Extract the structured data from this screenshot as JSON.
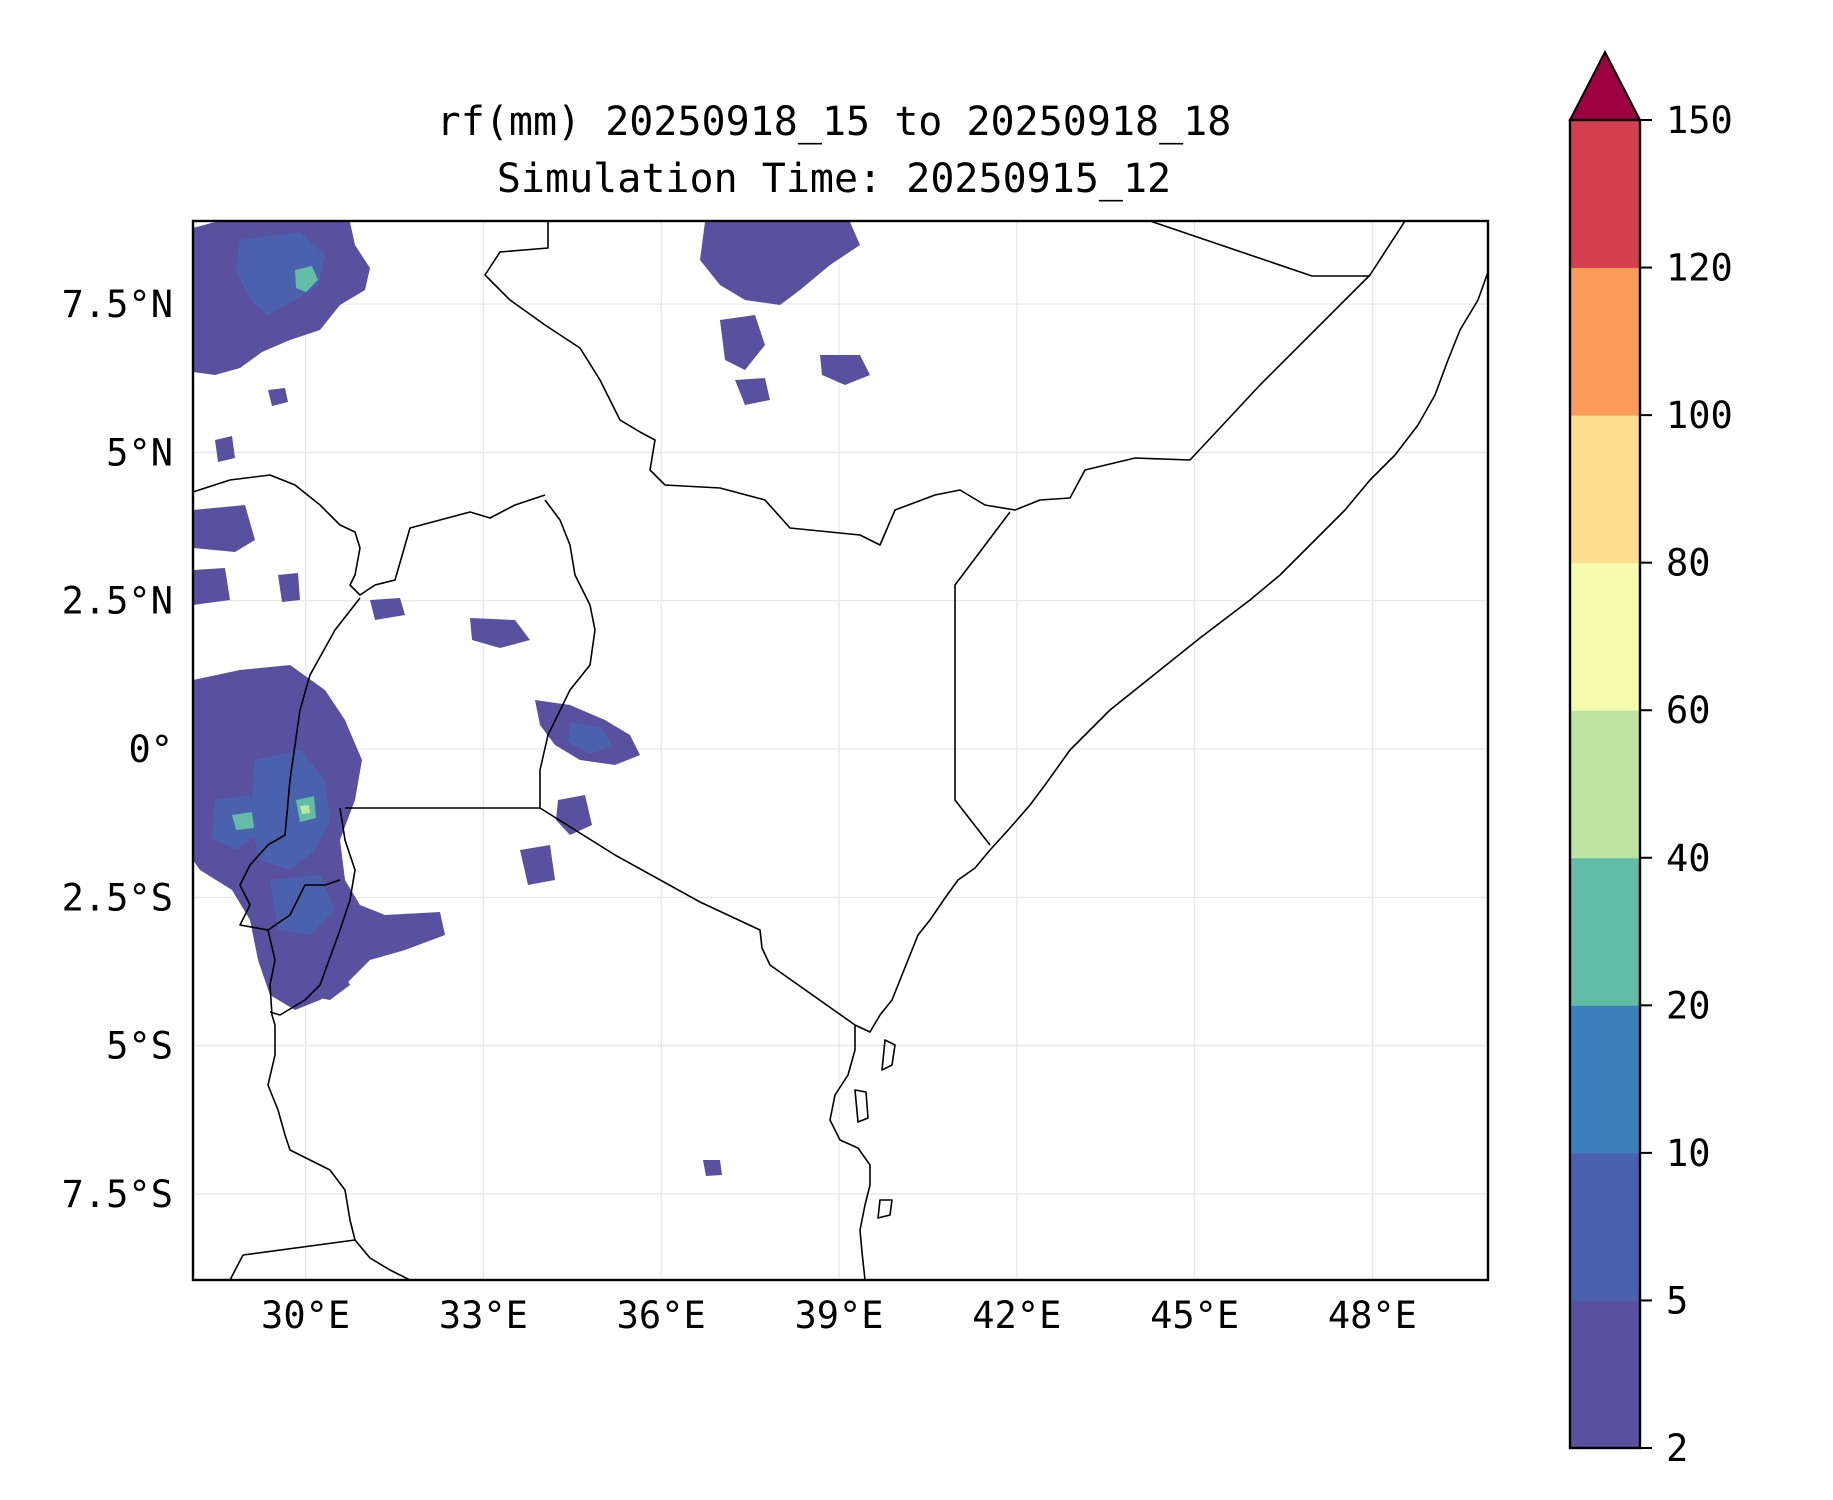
{
  "title": {
    "line1": "rf(mm) 20250918_15 to 20250918_18",
    "line2": "Simulation Time: 20250915_12"
  },
  "map": {
    "extent": {
      "lon_min": 28.1,
      "lon_max": 49.95,
      "lat_min": -8.95,
      "lat_max": 8.9
    },
    "grid": true,
    "lon_ticks": [
      {
        "value": 30,
        "label": "30°E"
      },
      {
        "value": 33,
        "label": "33°E"
      },
      {
        "value": 36,
        "label": "36°E"
      },
      {
        "value": 39,
        "label": "39°E"
      },
      {
        "value": 42,
        "label": "42°E"
      },
      {
        "value": 45,
        "label": "45°E"
      },
      {
        "value": 48,
        "label": "48°E"
      }
    ],
    "lat_ticks": [
      {
        "value": 7.5,
        "label": "7.5°N"
      },
      {
        "value": 5,
        "label": "5°N"
      },
      {
        "value": 2.5,
        "label": "2.5°N"
      },
      {
        "value": 0,
        "label": "0°"
      },
      {
        "value": -2.5,
        "label": "2.5°S"
      },
      {
        "value": -5,
        "label": "5°S"
      },
      {
        "value": -7.5,
        "label": "7.5°S"
      }
    ]
  },
  "colorbar": {
    "extend": "max",
    "levels": [
      2,
      5,
      10,
      20,
      40,
      60,
      80,
      100,
      120,
      150
    ],
    "labels": [
      "2",
      "5",
      "10",
      "20",
      "40",
      "60",
      "80",
      "100",
      "120",
      "150"
    ],
    "colors": [
      "#5a50a0",
      "#4a62ae",
      "#3a7fba",
      "#63bca6",
      "#bde4a0",
      "#f4fbad",
      "#fcde8c",
      "#f99c59",
      "#d53e4f"
    ],
    "extend_color": "#9e0142"
  },
  "colors": {
    "rain_low": "#5a50a0",
    "rain_mid": "#4a62ae",
    "rain_blue": "#3a7fba",
    "rain_teal": "#63bca6",
    "rain_green": "#bde4a0",
    "border": "#000000",
    "grid": "#e6e6e6"
  }
}
